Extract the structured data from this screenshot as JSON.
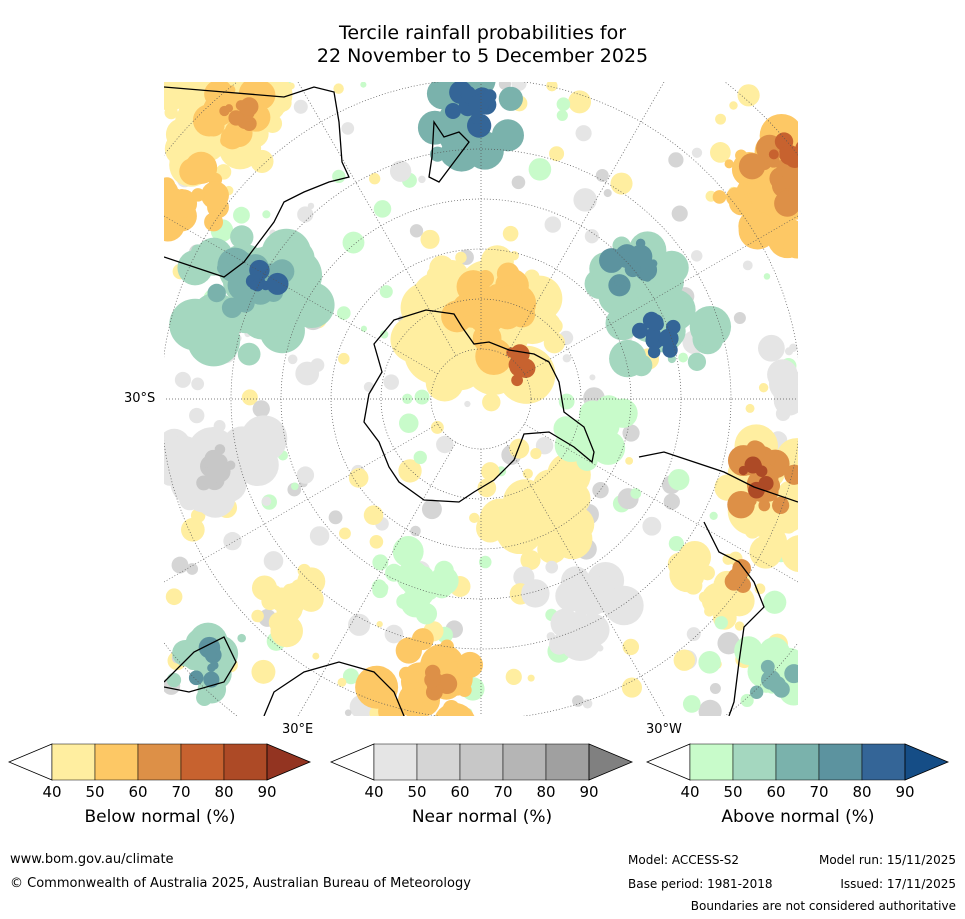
{
  "title": {
    "line1": "Tercile rainfall probabilities for",
    "line2": "22 November to 5 December 2025"
  },
  "map": {
    "lat_label": "30°S",
    "lon_label_east": "30°E",
    "lon_label_west": "30°W",
    "colors": {
      "below": [
        "#ffeea0",
        "#fdc865",
        "#dd9047",
        "#c7622f",
        "#ad4a26",
        "#933421"
      ],
      "near": [
        "#e5e5e5",
        "#d5d5d5",
        "#c7c7c7",
        "#b5b5b5",
        "#a0a0a0",
        "#808080"
      ],
      "above": [
        "#c8fbca",
        "#a4d7bf",
        "#7ab2ac",
        "#5c939f",
        "#346597",
        "#154d86"
      ],
      "land": "#000000",
      "grid": "#555555"
    }
  },
  "colorbars": [
    {
      "name": "below",
      "caption": "Below normal (%)",
      "ticks": [
        "40",
        "50",
        "60",
        "70",
        "80",
        "90"
      ]
    },
    {
      "name": "near",
      "caption": "Near normal (%)",
      "ticks": [
        "40",
        "50",
        "60",
        "70",
        "80",
        "90"
      ]
    },
    {
      "name": "above",
      "caption": "Above normal (%)",
      "ticks": [
        "40",
        "50",
        "60",
        "70",
        "80",
        "90"
      ]
    }
  ],
  "footer": {
    "website": "www.bom.gov.au/climate",
    "copyright": "© Commonwealth of Australia 2025, Australian Bureau of Meteorology",
    "model": "Model: ACCESS-S2",
    "model_run": "Model run: 15/11/2025",
    "base_period": "Base period: 1981-2018",
    "issued": "Issued: 17/11/2025",
    "disclaimer": "Boundaries are not considered authoritative"
  }
}
